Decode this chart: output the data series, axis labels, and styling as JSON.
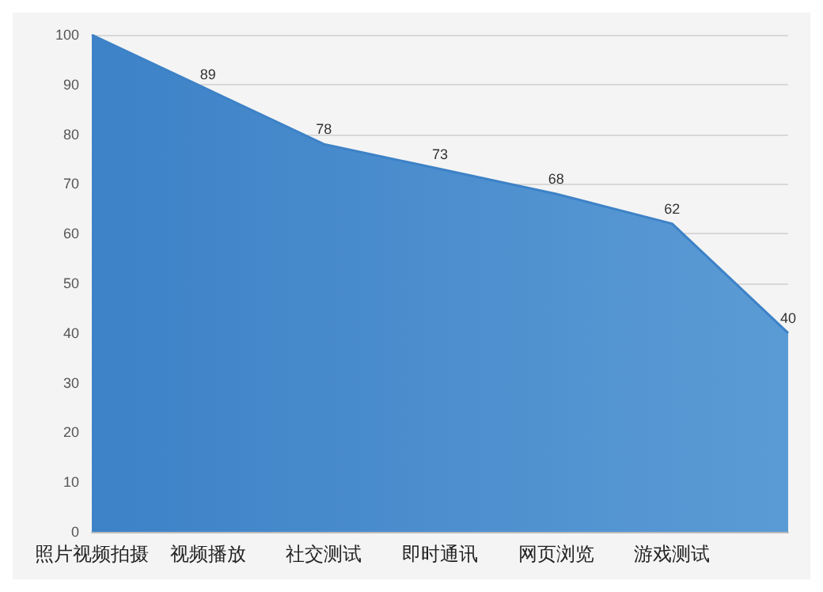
{
  "chart_data": {
    "type": "area",
    "categories": [
      "照片视频拍摄",
      "视频播放",
      "社交测试",
      "即时通讯",
      "网页浏览",
      "游戏测试",
      null
    ],
    "values": [
      100,
      89,
      78,
      73,
      68,
      62,
      40
    ],
    "value_labels": [
      null,
      "89",
      "78",
      "73",
      "68",
      "62",
      "40"
    ],
    "color": "#3d82c7",
    "ylim": [
      0,
      100
    ],
    "yticks": [
      0,
      10,
      20,
      30,
      40,
      50,
      60,
      70,
      80,
      90,
      100
    ],
    "grid": "y",
    "marker": "none"
  }
}
